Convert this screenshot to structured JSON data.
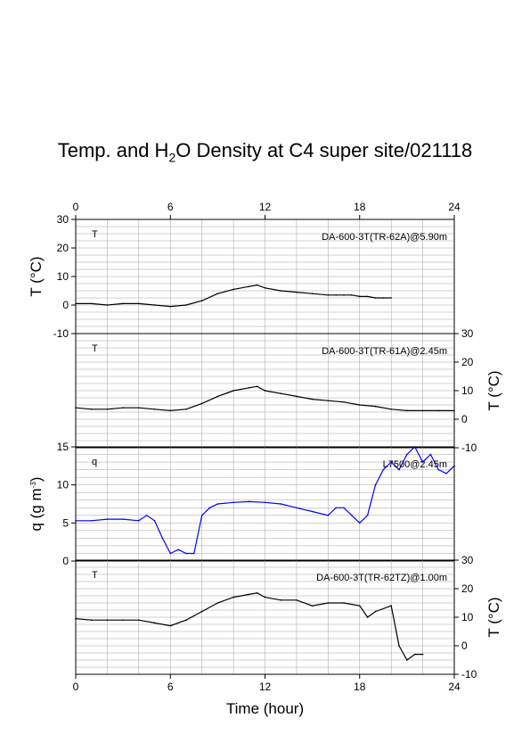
{
  "title_parts": [
    "Temp. and H",
    "2",
    "O Density at C4 super site/021118"
  ],
  "colors": {
    "black": "#000000",
    "blue": "#0000ff",
    "grid": "#a0a0a0"
  },
  "x_axis": {
    "label": "Time (hour)",
    "range": [
      0,
      24
    ],
    "ticks": [
      0,
      6,
      12,
      18,
      24
    ]
  },
  "chart_data": [
    {
      "type": "line",
      "panel": 1,
      "series_label": "T",
      "instrument": "DA-600-3T(TR-62A)@5.90m",
      "ylabel": "T (°C)",
      "y_axis_side": "left",
      "ylim": [
        -10,
        30
      ],
      "yticks": [
        -10,
        0,
        10,
        20,
        30
      ],
      "color": "#000000",
      "x": [
        0,
        1,
        2,
        3,
        4,
        5,
        6,
        7,
        8,
        9,
        10,
        11,
        11.5,
        12,
        13,
        14,
        15,
        16,
        16.5,
        17,
        17.5,
        18,
        18.5,
        19,
        19.5,
        20
      ],
      "y": [
        0.5,
        0.5,
        0,
        0.5,
        0.5,
        0,
        -0.5,
        0,
        1.5,
        4,
        5.5,
        6.5,
        7,
        6,
        5,
        4.5,
        4,
        3.5,
        3.5,
        3.5,
        3.5,
        3,
        3,
        2.5,
        2.5,
        2.5
      ]
    },
    {
      "type": "line",
      "panel": 2,
      "series_label": "T",
      "instrument": "DA-600-3T(TR-61A)@2.45m",
      "ylabel": "T (°C)",
      "y_axis_side": "right",
      "ylim": [
        -10,
        30
      ],
      "yticks": [
        -10,
        0,
        10,
        20,
        30
      ],
      "color": "#000000",
      "x": [
        0,
        1,
        2,
        3,
        4,
        5,
        6,
        7,
        8,
        9,
        10,
        11,
        11.5,
        12,
        13,
        14,
        15,
        16,
        17,
        18,
        19,
        20,
        21,
        22,
        23,
        24
      ],
      "y": [
        4,
        3.5,
        3.5,
        4,
        4,
        3.5,
        3,
        3.5,
        5.5,
        8,
        10,
        11,
        11.5,
        10,
        9,
        8,
        7,
        6.5,
        6,
        5,
        4.5,
        3.5,
        3,
        3,
        3,
        3
      ]
    },
    {
      "type": "line",
      "panel": 3,
      "series_label": "q",
      "instrument": "L7500@2.45m",
      "ylabel": "q (g m-3)",
      "y_axis_side": "left",
      "ylim": [
        0,
        15
      ],
      "yticks": [
        0,
        5,
        10,
        15
      ],
      "color": "#0000ff",
      "x": [
        0,
        1,
        2,
        3,
        4,
        4.5,
        5,
        5.5,
        6,
        6.5,
        7,
        7.5,
        8,
        8.5,
        9,
        10,
        11,
        12,
        13,
        14,
        15,
        16,
        16.5,
        17,
        17.5,
        18,
        18.5,
        19,
        19.5,
        20,
        20.5,
        21,
        21.5,
        22,
        22.5,
        23,
        23.5,
        24
      ],
      "y": [
        5.3,
        5.3,
        5.5,
        5.5,
        5.3,
        6,
        5.3,
        3,
        1,
        1.5,
        1,
        1,
        6,
        7,
        7.5,
        7.7,
        7.8,
        7.7,
        7.5,
        7,
        6.5,
        6,
        7,
        7,
        6,
        5,
        6,
        10,
        12,
        13,
        12,
        14,
        15,
        13,
        14,
        12,
        11.5,
        12.5
      ]
    },
    {
      "type": "line",
      "panel": 4,
      "series_label": "T",
      "instrument": "DA-600-3T(TR-62TZ)@1.00m",
      "ylabel": "T (°C)",
      "y_axis_side": "right",
      "ylim": [
        -10,
        30
      ],
      "yticks": [
        -10,
        0,
        10,
        20,
        30
      ],
      "color": "#000000",
      "x": [
        0,
        1,
        2,
        3,
        4,
        5,
        6,
        7,
        8,
        9,
        10,
        11,
        11.5,
        12,
        13,
        14,
        15,
        16,
        17,
        18,
        18.5,
        19,
        20,
        20.5,
        21,
        21.5,
        22
      ],
      "y": [
        9.5,
        9,
        9,
        9,
        9,
        8,
        7,
        9,
        12,
        15,
        17,
        18,
        18.5,
        17,
        16,
        16,
        14,
        15,
        15,
        14,
        10,
        12,
        14,
        0,
        -5,
        -3,
        -3
      ]
    }
  ]
}
